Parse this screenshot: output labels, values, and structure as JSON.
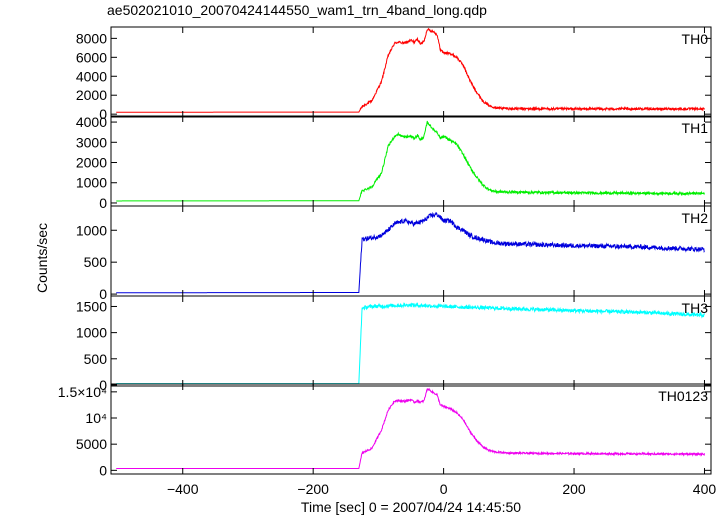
{
  "chart_data": {
    "type": "line",
    "title": "ae502021010_20070424144550_wam1_trn_4band_long.qdp",
    "xlabel": "Time [sec] 0 = 2007/04/24 14:45:50",
    "ylabel": "Counts/sec",
    "xlim": [
      -510,
      410
    ],
    "x_ticks": [
      -400,
      -200,
      0,
      200,
      400
    ],
    "x_tick_labels": [
      "−400",
      "−200",
      "0",
      "200",
      "400"
    ],
    "series": [
      {
        "name": "TH0",
        "color": "#ff0000",
        "ylim": [
          -300,
          9200
        ],
        "y_ticks": [
          0,
          2000,
          4000,
          6000,
          8000
        ],
        "y_tick_labels": [
          "0",
          "2000",
          "4000",
          "6000",
          "8000"
        ],
        "noise": 120,
        "x": [
          -510,
          -130,
          -125,
          -110,
          -95,
          -85,
          -75,
          -70,
          -60,
          -50,
          -45,
          -40,
          -35,
          -30,
          -25,
          -20,
          -15,
          -10,
          -5,
          0,
          10,
          20,
          30,
          40,
          50,
          60,
          70,
          80,
          100,
          150,
          200,
          300,
          400
        ],
        "values": [
          200,
          220,
          800,
          1400,
          3500,
          6200,
          7500,
          7600,
          7500,
          7800,
          7600,
          7900,
          7400,
          7700,
          9000,
          8800,
          8700,
          8400,
          6800,
          6500,
          6400,
          6000,
          5200,
          3600,
          2400,
          1400,
          900,
          700,
          580,
          560,
          550,
          560,
          550
        ]
      },
      {
        "name": "TH1",
        "color": "#00ee00",
        "ylim": [
          -150,
          4300
        ],
        "y_ticks": [
          0,
          1000,
          2000,
          3000,
          4000
        ],
        "y_tick_labels": [
          "0",
          "1000",
          "2000",
          "3000",
          "4000"
        ],
        "noise": 60,
        "x": [
          -510,
          -130,
          -125,
          -110,
          -95,
          -85,
          -75,
          -70,
          -60,
          -50,
          -45,
          -40,
          -35,
          -30,
          -25,
          -20,
          -15,
          -10,
          -5,
          0,
          10,
          20,
          30,
          40,
          50,
          60,
          70,
          80,
          100,
          150,
          200,
          300,
          400
        ],
        "values": [
          100,
          110,
          600,
          800,
          1500,
          2800,
          3300,
          3400,
          3250,
          3300,
          3200,
          3350,
          3100,
          3300,
          4000,
          3800,
          3600,
          3500,
          3200,
          3300,
          3100,
          2900,
          2400,
          1800,
          1300,
          900,
          650,
          560,
          540,
          520,
          500,
          480,
          470
        ]
      },
      {
        "name": "TH2",
        "color": "#0000dd",
        "ylim": [
          -30,
          1380
        ],
        "y_ticks": [
          0,
          500,
          1000
        ],
        "y_tick_labels": [
          "0",
          "500",
          "1000"
        ],
        "noise": 35,
        "x": [
          -510,
          -130,
          -125,
          -110,
          -95,
          -85,
          -75,
          -60,
          -45,
          -30,
          -20,
          -10,
          0,
          10,
          20,
          30,
          40,
          50,
          60,
          70,
          80,
          100,
          150,
          200,
          300,
          400
        ],
        "values": [
          20,
          25,
          860,
          880,
          920,
          1000,
          1100,
          1150,
          1100,
          1150,
          1230,
          1250,
          1150,
          1150,
          1050,
          1000,
          920,
          880,
          860,
          820,
          800,
          790,
          770,
          760,
          740,
          700
        ]
      },
      {
        "name": "TH3",
        "color": "#00ffff",
        "ylim": [
          -20,
          1700
        ],
        "y_ticks": [
          0,
          500,
          1000,
          1500
        ],
        "y_tick_labels": [
          "0",
          "500",
          "1000",
          "1500"
        ],
        "noise": 35,
        "x": [
          -510,
          -130,
          -125,
          -110,
          -50,
          0,
          50,
          100,
          150,
          200,
          300,
          400
        ],
        "values": [
          25,
          25,
          1470,
          1500,
          1530,
          1500,
          1480,
          1460,
          1440,
          1420,
          1390,
          1330
        ]
      },
      {
        "name": "TH0123",
        "color": "#ee00ee",
        "ylim": [
          -700,
          16500
        ],
        "y_ticks": [
          0,
          5000,
          10000,
          15000
        ],
        "y_tick_labels": [
          "0",
          "5000",
          "10⁴",
          "1.5×10⁴"
        ],
        "noise": 170,
        "x": [
          -510,
          -130,
          -125,
          -110,
          -95,
          -85,
          -75,
          -70,
          -60,
          -50,
          -45,
          -40,
          -35,
          -30,
          -25,
          -20,
          -15,
          -10,
          -5,
          0,
          10,
          20,
          30,
          40,
          50,
          60,
          70,
          80,
          100,
          150,
          200,
          300,
          400
        ],
        "values": [
          350,
          350,
          3300,
          4200,
          7800,
          11500,
          13300,
          13300,
          13200,
          13500,
          13000,
          13300,
          13000,
          13300,
          15600,
          15200,
          14800,
          14400,
          12500,
          12200,
          11800,
          11000,
          9700,
          7500,
          5800,
          4500,
          3800,
          3500,
          3300,
          3250,
          3200,
          3150,
          3100
        ]
      }
    ]
  }
}
